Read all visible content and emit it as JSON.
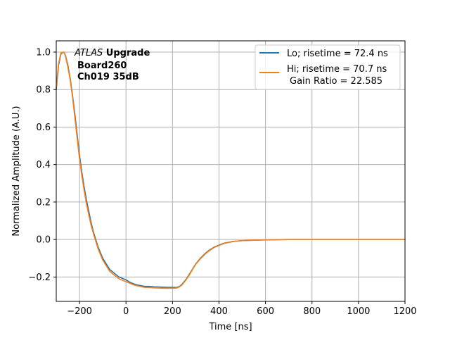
{
  "chart_data": {
    "type": "line",
    "title": "",
    "xlabel": "Time [ns]",
    "ylabel": "Normalized Amplitude (A.U.)",
    "xlim": [
      -300,
      1200
    ],
    "ylim": [
      -0.33,
      1.06
    ],
    "xticks": [
      -200,
      0,
      200,
      400,
      600,
      800,
      1000,
      1200
    ],
    "xtick_labels": [
      "−200",
      "0",
      "200",
      "400",
      "600",
      "800",
      "1000",
      "1200"
    ],
    "yticks": [
      -0.2,
      0.0,
      0.2,
      0.4,
      0.6,
      0.8,
      1.0
    ],
    "ytick_labels": [
      "−0.2",
      "0.0",
      "0.2",
      "0.4",
      "0.6",
      "0.8",
      "1.0"
    ],
    "grid": true,
    "legend_position": "top-right",
    "annotation": {
      "line1_italic": "ATLAS",
      "line1_bold": " Upgrade",
      "line2": "Board260",
      "line3": "Ch019 35dB"
    },
    "series": [
      {
        "name": "Lo; risetime = 72.4 ns",
        "color": "#1f77b4",
        "x": [
          -300,
          -290,
          -280,
          -270,
          -265,
          -260,
          -250,
          -240,
          -230,
          -220,
          -210,
          -200,
          -190,
          -180,
          -170,
          -160,
          -150,
          -140,
          -130,
          -120,
          -110,
          -100,
          -90,
          -80,
          -70,
          -60,
          -50,
          -40,
          -30,
          -20,
          -10,
          0,
          20,
          40,
          60,
          80,
          100,
          120,
          140,
          160,
          180,
          200,
          210,
          220,
          230,
          240,
          250,
          260,
          270,
          280,
          290,
          300,
          320,
          340,
          360,
          380,
          400,
          420,
          440,
          460,
          480,
          500,
          550,
          600,
          650,
          700,
          800,
          900,
          1000,
          1100,
          1200
        ],
        "y": [
          0.8,
          0.93,
          0.99,
          1.0,
          0.995,
          0.98,
          0.93,
          0.86,
          0.77,
          0.67,
          0.56,
          0.45,
          0.36,
          0.28,
          0.21,
          0.15,
          0.09,
          0.04,
          0.0,
          -0.04,
          -0.07,
          -0.1,
          -0.12,
          -0.14,
          -0.16,
          -0.17,
          -0.18,
          -0.19,
          -0.2,
          -0.205,
          -0.21,
          -0.215,
          -0.23,
          -0.24,
          -0.245,
          -0.25,
          -0.25,
          -0.252,
          -0.253,
          -0.254,
          -0.255,
          -0.255,
          -0.256,
          -0.255,
          -0.25,
          -0.24,
          -0.225,
          -0.21,
          -0.19,
          -0.17,
          -0.15,
          -0.13,
          -0.1,
          -0.075,
          -0.055,
          -0.04,
          -0.03,
          -0.02,
          -0.015,
          -0.01,
          -0.008,
          -0.006,
          -0.004,
          -0.002,
          -0.001,
          0.0,
          0.0,
          0.0,
          0.0,
          0.0,
          0.0
        ]
      },
      {
        "name": "Hi; risetime = 70.7 ns",
        "name_line2": "Gain Ratio = 22.585",
        "color": "#ff7f0e",
        "x": [
          -300,
          -290,
          -280,
          -270,
          -265,
          -260,
          -250,
          -240,
          -230,
          -220,
          -210,
          -200,
          -190,
          -180,
          -170,
          -160,
          -150,
          -140,
          -130,
          -120,
          -110,
          -100,
          -90,
          -80,
          -70,
          -60,
          -50,
          -40,
          -30,
          -20,
          -10,
          0,
          20,
          40,
          60,
          80,
          100,
          120,
          140,
          160,
          180,
          200,
          210,
          220,
          230,
          240,
          250,
          260,
          270,
          280,
          290,
          300,
          320,
          340,
          360,
          380,
          400,
          420,
          440,
          460,
          480,
          500,
          550,
          600,
          650,
          700,
          800,
          900,
          1000,
          1100,
          1200
        ],
        "y": [
          0.81,
          0.94,
          0.995,
          1.0,
          0.995,
          0.975,
          0.92,
          0.85,
          0.76,
          0.65,
          0.54,
          0.43,
          0.34,
          0.26,
          0.19,
          0.13,
          0.075,
          0.03,
          -0.01,
          -0.05,
          -0.08,
          -0.11,
          -0.13,
          -0.15,
          -0.17,
          -0.18,
          -0.19,
          -0.2,
          -0.21,
          -0.215,
          -0.22,
          -0.225,
          -0.235,
          -0.245,
          -0.25,
          -0.255,
          -0.256,
          -0.258,
          -0.259,
          -0.26,
          -0.26,
          -0.26,
          -0.26,
          -0.258,
          -0.252,
          -0.243,
          -0.228,
          -0.212,
          -0.193,
          -0.173,
          -0.152,
          -0.132,
          -0.103,
          -0.078,
          -0.058,
          -0.042,
          -0.032,
          -0.022,
          -0.016,
          -0.011,
          -0.008,
          -0.006,
          -0.004,
          -0.002,
          -0.001,
          0.0,
          0.0,
          0.0,
          0.0,
          0.0,
          0.0
        ]
      }
    ]
  }
}
